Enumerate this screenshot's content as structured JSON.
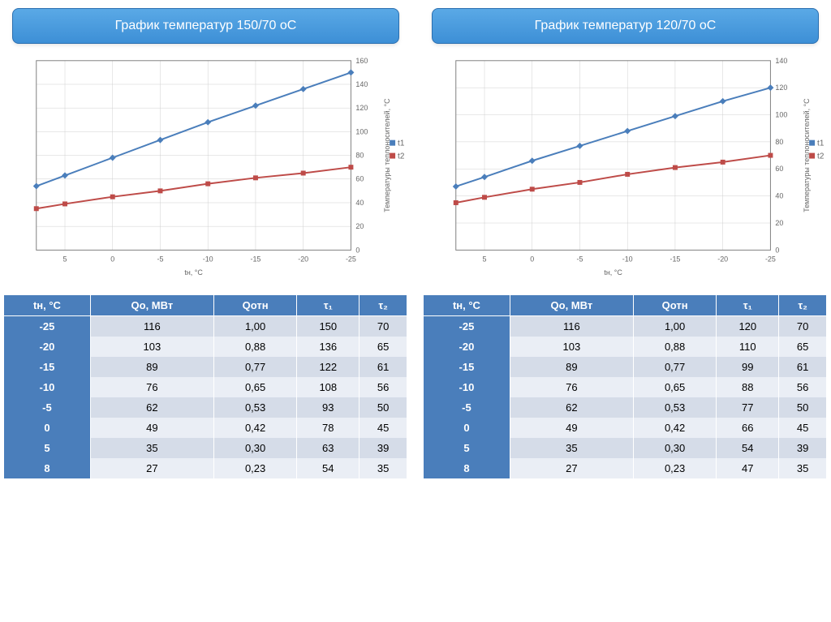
{
  "left": {
    "title": "График температур 150/70 оС",
    "chart": {
      "type": "line",
      "x_label": "tн, °С",
      "y_label": "Температуры теплоносителей, °С",
      "x_ticks": [
        5,
        0,
        -5,
        -10,
        -15,
        -20,
        -25
      ],
      "y_ticks": [
        0,
        20,
        40,
        60,
        80,
        100,
        120,
        140,
        160
      ],
      "ylim": [
        0,
        160
      ],
      "series": [
        {
          "name": "t1",
          "color": "#4a7ebb",
          "marker": "diamond",
          "values": [
            54,
            63,
            78,
            93,
            108,
            122,
            136,
            150
          ],
          "x": [
            8,
            5,
            0,
            -5,
            -10,
            -15,
            -20,
            -25
          ]
        },
        {
          "name": "t2",
          "color": "#be4b48",
          "marker": "square",
          "values": [
            35,
            39,
            45,
            50,
            56,
            61,
            65,
            70
          ],
          "x": [
            8,
            5,
            0,
            -5,
            -10,
            -15,
            -20,
            -25
          ]
        }
      ],
      "grid_color": "#d0d0d0",
      "background_color": "#ffffff"
    },
    "table": {
      "columns": [
        "tн, °С",
        "Qо, МВт",
        "Qотн",
        "τ₁",
        "τ₂"
      ],
      "rows": [
        [
          "-25",
          "116",
          "1,00",
          "150",
          "70"
        ],
        [
          "-20",
          "103",
          "0,88",
          "136",
          "65"
        ],
        [
          "-15",
          "89",
          "0,77",
          "122",
          "61"
        ],
        [
          "-10",
          "76",
          "0,65",
          "108",
          "56"
        ],
        [
          "-5",
          "62",
          "0,53",
          "93",
          "50"
        ],
        [
          "0",
          "49",
          "0,42",
          "78",
          "45"
        ],
        [
          "5",
          "35",
          "0,30",
          "63",
          "39"
        ],
        [
          "8",
          "27",
          "0,23",
          "54",
          "35"
        ]
      ]
    }
  },
  "right": {
    "title": "График температур 120/70 оС",
    "chart": {
      "type": "line",
      "x_label": "tн, °С",
      "y_label": "Температуры теплоносителей, °С",
      "x_ticks": [
        5,
        0,
        -5,
        -10,
        -15,
        -20,
        -25
      ],
      "y_ticks": [
        0,
        20,
        40,
        60,
        80,
        100,
        120,
        140
      ],
      "ylim": [
        0,
        140
      ],
      "series": [
        {
          "name": "t1",
          "color": "#4a7ebb",
          "marker": "diamond",
          "values": [
            47,
            54,
            66,
            77,
            88,
            99,
            110,
            120
          ],
          "x": [
            8,
            5,
            0,
            -5,
            -10,
            -15,
            -20,
            -25
          ]
        },
        {
          "name": "t2",
          "color": "#be4b48",
          "marker": "square",
          "values": [
            35,
            39,
            45,
            50,
            56,
            61,
            65,
            70
          ],
          "x": [
            8,
            5,
            0,
            -5,
            -10,
            -15,
            -20,
            -25
          ]
        }
      ],
      "grid_color": "#d0d0d0",
      "background_color": "#ffffff"
    },
    "table": {
      "columns": [
        "tн, °С",
        "Qо, МВт",
        "Qотн",
        "τ₁",
        "τ₂"
      ],
      "rows": [
        [
          "-25",
          "116",
          "1,00",
          "120",
          "70"
        ],
        [
          "-20",
          "103",
          "0,88",
          "110",
          "65"
        ],
        [
          "-15",
          "89",
          "0,77",
          "99",
          "61"
        ],
        [
          "-10",
          "76",
          "0,65",
          "88",
          "56"
        ],
        [
          "-5",
          "62",
          "0,53",
          "77",
          "50"
        ],
        [
          "0",
          "49",
          "0,42",
          "66",
          "45"
        ],
        [
          "5",
          "35",
          "0,30",
          "54",
          "39"
        ],
        [
          "8",
          "27",
          "0,23",
          "47",
          "35"
        ]
      ]
    }
  }
}
